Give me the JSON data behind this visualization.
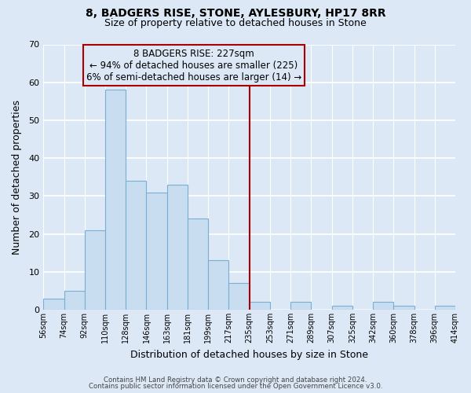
{
  "title": "8, BADGERS RISE, STONE, AYLESBURY, HP17 8RR",
  "subtitle": "Size of property relative to detached houses in Stone",
  "xlabel": "Distribution of detached houses by size in Stone",
  "ylabel": "Number of detached properties",
  "bar_color": "#c8ddf0",
  "bar_edge_color": "#7aafd4",
  "bg_color": "#dce8f5",
  "grid_color": "#ffffff",
  "vline_color": "#aa0000",
  "annotation_title": "8 BADGERS RISE: 227sqm",
  "annotation_line1": "← 94% of detached houses are smaller (225)",
  "annotation_line2": "6% of semi-detached houses are larger (14) →",
  "annotation_box_color": "#aa0000",
  "counts": [
    3,
    5,
    21,
    58,
    34,
    31,
    33,
    24,
    13,
    7,
    2,
    0,
    2,
    0,
    1,
    0,
    2,
    1,
    0,
    1
  ],
  "xlabels": [
    "56sqm",
    "74sqm",
    "92sqm",
    "110sqm",
    "128sqm",
    "146sqm",
    "163sqm",
    "181sqm",
    "199sqm",
    "217sqm",
    "235sqm",
    "253sqm",
    "271sqm",
    "289sqm",
    "307sqm",
    "325sqm",
    "342sqm",
    "360sqm",
    "378sqm",
    "396sqm",
    "414sqm"
  ],
  "ylim": [
    0,
    70
  ],
  "yticks": [
    0,
    10,
    20,
    30,
    40,
    50,
    60,
    70
  ],
  "vline_bar_index": 9,
  "footer1": "Contains HM Land Registry data © Crown copyright and database right 2024.",
  "footer2": "Contains public sector information licensed under the Open Government Licence v3.0."
}
